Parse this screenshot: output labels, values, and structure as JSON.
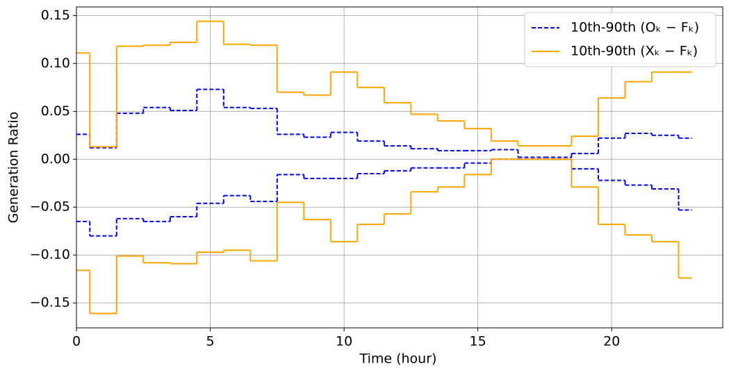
{
  "chart_data": {
    "type": "step",
    "x_label": "Time (hour)",
    "y_label": "Generation Ratio",
    "x": [
      0,
      1,
      2,
      3,
      4,
      5,
      6,
      7,
      8,
      9,
      10,
      11,
      12,
      13,
      14,
      15,
      16,
      17,
      18,
      19,
      20,
      21,
      22,
      23
    ],
    "series": [
      {
        "name": "10th-90th (Oₖ − Fₖ)",
        "color": "#0000ff",
        "dashed": true,
        "upper": [
          0.026,
          0.012,
          0.048,
          0.054,
          0.051,
          0.073,
          0.054,
          0.053,
          0.026,
          0.023,
          0.028,
          0.019,
          0.014,
          0.011,
          0.009,
          0.009,
          0.01,
          0.002,
          0.002,
          0.006,
          0.022,
          0.027,
          0.025,
          0.022
        ],
        "lower": [
          -0.065,
          -0.08,
          -0.062,
          -0.065,
          -0.06,
          -0.046,
          -0.038,
          -0.044,
          -0.016,
          -0.02,
          -0.02,
          -0.015,
          -0.012,
          -0.009,
          -0.009,
          -0.004,
          0.0,
          0.0,
          0.0,
          -0.01,
          -0.022,
          -0.027,
          -0.031,
          -0.053
        ]
      },
      {
        "name": "10th-90th (Xₖ − Fₖ)",
        "color": "#ffa500",
        "dashed": false,
        "upper": [
          0.111,
          0.013,
          0.118,
          0.119,
          0.122,
          0.144,
          0.12,
          0.119,
          0.07,
          0.067,
          0.091,
          0.075,
          0.059,
          0.047,
          0.04,
          0.032,
          0.019,
          0.014,
          0.014,
          0.024,
          0.064,
          0.081,
          0.091,
          0.091
        ],
        "lower": [
          -0.116,
          -0.161,
          -0.101,
          -0.108,
          -0.109,
          -0.097,
          -0.095,
          -0.106,
          -0.045,
          -0.063,
          -0.086,
          -0.068,
          -0.057,
          -0.034,
          -0.029,
          -0.016,
          0.0,
          0.0,
          0.0,
          -0.029,
          -0.068,
          -0.079,
          -0.086,
          -0.124
        ]
      }
    ],
    "xlim": [
      0,
      24.15
    ],
    "ylim": [
      -0.176,
      0.159
    ],
    "xticks": [
      0,
      5,
      10,
      15,
      20
    ],
    "yticks": [
      {
        "value": -0.15,
        "label": "−0.15"
      },
      {
        "value": -0.1,
        "label": "−0.10"
      },
      {
        "value": -0.05,
        "label": "−0.05"
      },
      {
        "value": 0,
        "label": "0.00"
      },
      0.05,
      {
        "value": 0.1,
        "label": "0.10"
      },
      0.15
    ],
    "grid": true,
    "legend": "upper right"
  }
}
